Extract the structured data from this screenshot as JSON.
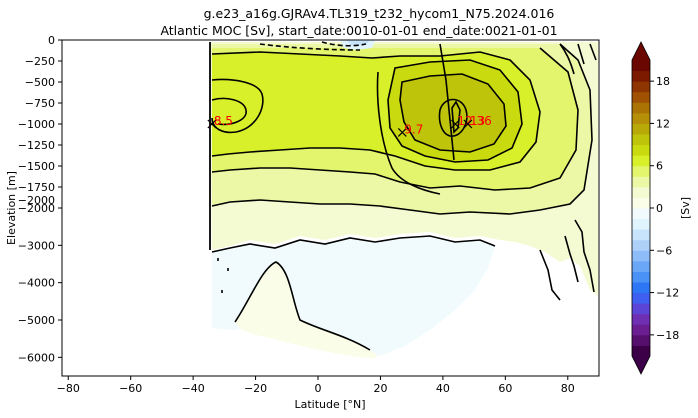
{
  "figure": {
    "suptitle": "g.e23_a16g.GJRAv4.TL319_t232_hycom1_N75.2024.016",
    "title": "Atlantic MOC [Sv], start_date:0010-01-01 end_date:0021-01-01"
  },
  "chart_data": {
    "type": "heatmap",
    "title": "Atlantic MOC [Sv], start_date:0010-01-01 end_date:0021-01-01",
    "xlabel": "Latitude [°N]",
    "ylabel": "Elevation [m]",
    "xlim": [
      -82,
      90
    ],
    "x_ticks": [
      -80,
      -60,
      -40,
      -20,
      0,
      20,
      40,
      60,
      80
    ],
    "y_ticks_upper": [
      0,
      -250,
      -500,
      -750,
      -1000,
      -1250,
      -1500,
      -1750,
      -2000
    ],
    "y_ticks_lower": [
      -2000,
      -3000,
      -4000,
      -5000,
      -6000
    ],
    "colorbar": {
      "label": "[Sv]",
      "ticks": [
        18,
        12,
        6,
        0,
        -6,
        -12,
        -18
      ],
      "levels": [
        -21,
        -19.5,
        -18,
        -16.5,
        -15,
        -13.5,
        -12,
        -10.5,
        -9,
        -7.5,
        -6,
        -4.5,
        -3,
        -1.5,
        0,
        1.5,
        3,
        4.5,
        6,
        7.5,
        9,
        10.5,
        12,
        13.5,
        15,
        16.5,
        18,
        19.5,
        21
      ],
      "colors": [
        "#3b0047",
        "#560f6c",
        "#6a1e91",
        "#6f2fb3",
        "#5a45d6",
        "#3e5ff0",
        "#2d76f4",
        "#4a92f5",
        "#6aa7f6",
        "#8dbcf8",
        "#aed1fa",
        "#c8e4fc",
        "#e0f4fd",
        "#f1fbfe",
        "#fafde8",
        "#f4fbd2",
        "#ecf8a5",
        "#e3f56c",
        "#d8f02a",
        "#c9db0f",
        "#bec40a",
        "#b8a808",
        "#b48f07",
        "#ab7204",
        "#a05202",
        "#8e3501",
        "#7c1a00",
        "#6a0700"
      ]
    },
    "annotations": [
      {
        "label": "8.5",
        "lat": -34,
        "depth": -1000
      },
      {
        "label": "9.7",
        "lat": 27,
        "depth": -1100
      },
      {
        "label": "12.36",
        "lat": 44,
        "depth": -1000
      },
      {
        "label": "13",
        "lat": 48,
        "depth": -1000
      }
    ]
  }
}
